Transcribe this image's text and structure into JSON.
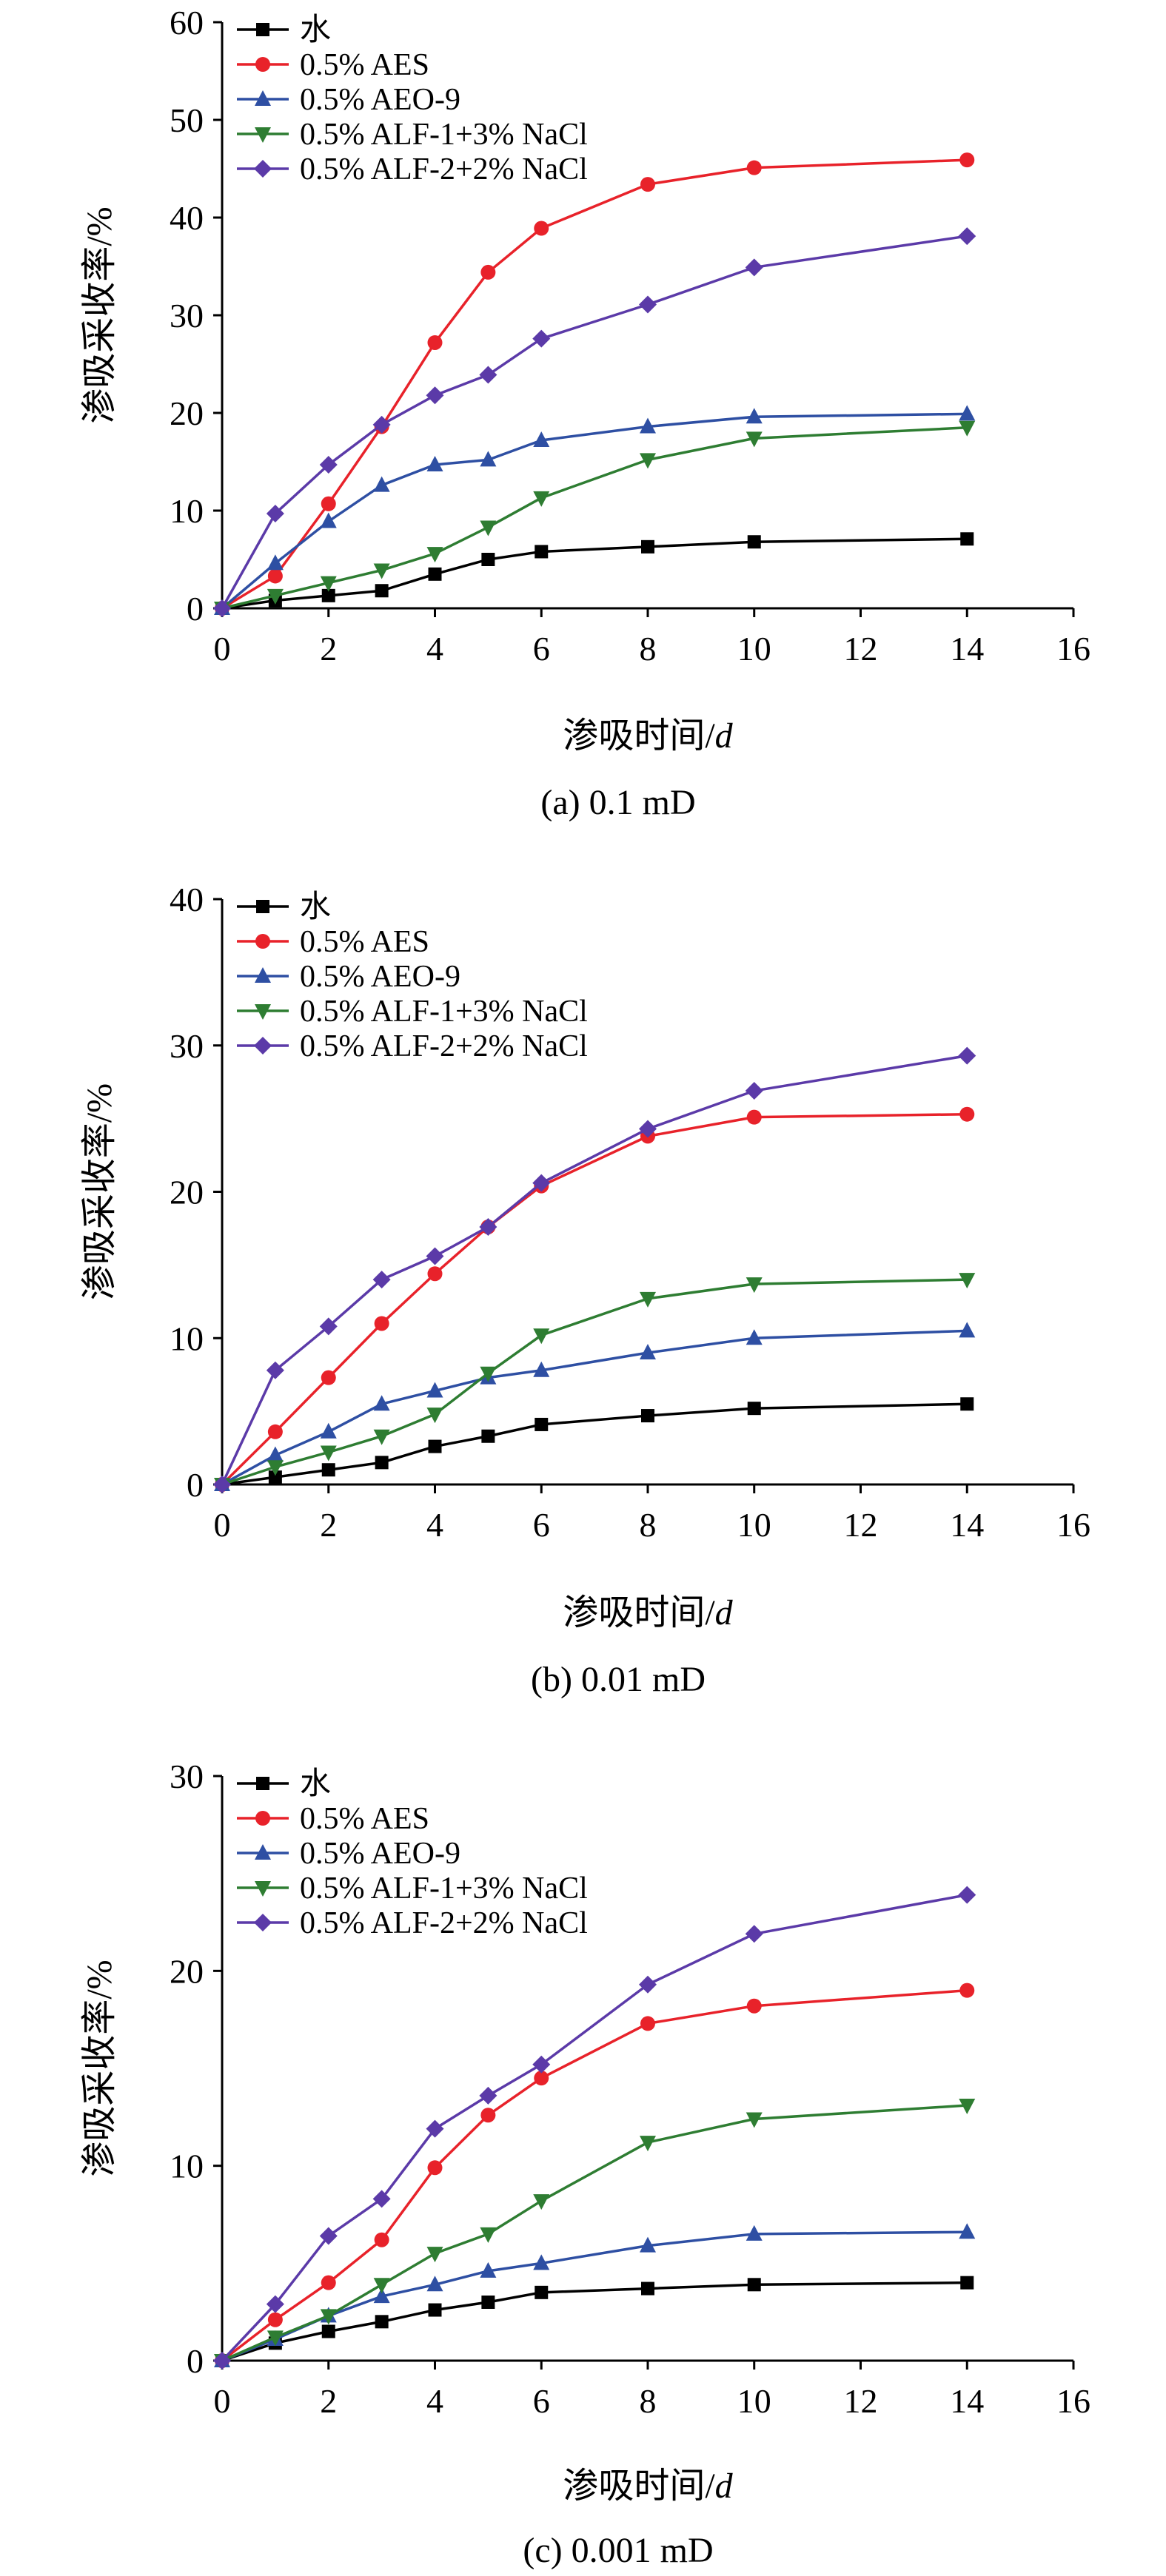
{
  "chart_data": [
    {
      "type": "line",
      "caption": "(a) 0.1 mD",
      "xlabel": "渗吸时间/d",
      "ylabel": "渗吸采收率/%",
      "xlim": [
        0,
        16
      ],
      "ylim": [
        0,
        60
      ],
      "xticks": [
        0,
        2,
        4,
        6,
        8,
        10,
        12,
        14,
        16
      ],
      "yticks": [
        0,
        10,
        20,
        30,
        40,
        50,
        60
      ],
      "grid": false,
      "legend_position": "top-left",
      "series": [
        {
          "name": "水",
          "color": "#000000",
          "marker": "square",
          "x": [
            0,
            1,
            2,
            3,
            4,
            5,
            6,
            8,
            10,
            14
          ],
          "y": [
            0,
            0.8,
            1.3,
            1.8,
            3.5,
            5.0,
            5.8,
            6.3,
            6.8,
            7.1
          ]
        },
        {
          "name": "0.5% AES",
          "color": "#e8222a",
          "marker": "circle",
          "x": [
            0,
            1,
            2,
            3,
            4,
            5,
            6,
            8,
            10,
            14
          ],
          "y": [
            0,
            3.3,
            10.7,
            18.6,
            27.2,
            34.4,
            38.9,
            43.4,
            45.1,
            45.9
          ]
        },
        {
          "name": "0.5% AEO-9",
          "color": "#2e4fa3",
          "marker": "triangle-up",
          "x": [
            0,
            1,
            2,
            3,
            4,
            5,
            6,
            8,
            10,
            14
          ],
          "y": [
            0,
            4.6,
            8.9,
            12.6,
            14.7,
            15.2,
            17.2,
            18.6,
            19.6,
            19.9
          ]
        },
        {
          "name": "0.5% ALF-1+3% NaCl",
          "color": "#2e7d32",
          "marker": "triangle-down",
          "x": [
            0,
            1,
            2,
            3,
            4,
            5,
            6,
            8,
            10,
            14
          ],
          "y": [
            0,
            1.3,
            2.6,
            3.9,
            5.6,
            8.3,
            11.3,
            15.2,
            17.4,
            18.5
          ]
        },
        {
          "name": "0.5% ALF-2+2% NaCl",
          "color": "#5b3aa8",
          "marker": "diamond",
          "x": [
            0,
            1,
            2,
            3,
            4,
            5,
            6,
            8,
            10,
            14
          ],
          "y": [
            0,
            9.7,
            14.7,
            18.8,
            21.8,
            23.9,
            27.6,
            31.1,
            34.9,
            38.1
          ]
        }
      ]
    },
    {
      "type": "line",
      "caption": "(b)  0.01 mD",
      "xlabel": "渗吸时间/d",
      "ylabel": "渗吸采收率/%",
      "xlim": [
        0,
        16
      ],
      "ylim": [
        0,
        40
      ],
      "xticks": [
        0,
        2,
        4,
        6,
        8,
        10,
        12,
        14,
        16
      ],
      "yticks": [
        0,
        10,
        20,
        30,
        40
      ],
      "grid": false,
      "legend_position": "top-left",
      "series": [
        {
          "name": "水",
          "color": "#000000",
          "marker": "square",
          "x": [
            0,
            1,
            2,
            3,
            4,
            5,
            6,
            8,
            10,
            14
          ],
          "y": [
            0,
            0.5,
            1.0,
            1.5,
            2.6,
            3.3,
            4.1,
            4.7,
            5.2,
            5.5
          ]
        },
        {
          "name": "0.5% AES",
          "color": "#e8222a",
          "marker": "circle",
          "x": [
            0,
            1,
            2,
            3,
            4,
            5,
            6,
            8,
            10,
            14
          ],
          "y": [
            0,
            3.6,
            7.3,
            11.0,
            14.4,
            17.6,
            20.4,
            23.8,
            25.1,
            25.3
          ]
        },
        {
          "name": "0.5% AEO-9",
          "color": "#2e4fa3",
          "marker": "triangle-up",
          "x": [
            0,
            1,
            2,
            3,
            4,
            5,
            6,
            8,
            10,
            14
          ],
          "y": [
            0,
            2.0,
            3.6,
            5.5,
            6.4,
            7.3,
            7.8,
            9.0,
            10.0,
            10.5
          ]
        },
        {
          "name": "0.5% ALF-1+3% NaCl",
          "color": "#2e7d32",
          "marker": "triangle-down",
          "x": [
            0,
            1,
            2,
            3,
            4,
            5,
            6,
            8,
            10,
            14
          ],
          "y": [
            0,
            1.2,
            2.2,
            3.3,
            4.8,
            7.6,
            10.2,
            12.7,
            13.7,
            14.0
          ]
        },
        {
          "name": "0.5% ALF-2+2% NaCl",
          "color": "#5b3aa8",
          "marker": "diamond",
          "x": [
            0,
            1,
            2,
            3,
            4,
            5,
            6,
            8,
            10,
            14
          ],
          "y": [
            0,
            7.8,
            10.8,
            14.0,
            15.6,
            17.6,
            20.6,
            24.3,
            26.9,
            29.3
          ]
        }
      ]
    },
    {
      "type": "line",
      "caption": "(c) 0.001 mD",
      "xlabel": "渗吸时间/d",
      "ylabel": "渗吸采收率/%",
      "xlim": [
        0,
        16
      ],
      "ylim": [
        0,
        30
      ],
      "xticks": [
        0,
        2,
        4,
        6,
        8,
        10,
        12,
        14,
        16
      ],
      "yticks": [
        0,
        10,
        20,
        30
      ],
      "grid": false,
      "legend_position": "top-left",
      "series": [
        {
          "name": "水",
          "color": "#000000",
          "marker": "square",
          "x": [
            0,
            1,
            2,
            3,
            4,
            5,
            6,
            8,
            10,
            14
          ],
          "y": [
            0,
            0.9,
            1.5,
            2.0,
            2.6,
            3.0,
            3.5,
            3.7,
            3.9,
            4.0
          ]
        },
        {
          "name": "0.5% AES",
          "color": "#e8222a",
          "marker": "circle",
          "x": [
            0,
            1,
            2,
            3,
            4,
            5,
            6,
            8,
            10,
            14
          ],
          "y": [
            0,
            2.1,
            4.0,
            6.2,
            9.9,
            12.6,
            14.5,
            17.3,
            18.2,
            19.0
          ]
        },
        {
          "name": "0.5% AEO-9",
          "color": "#2e4fa3",
          "marker": "triangle-up",
          "x": [
            0,
            1,
            2,
            3,
            4,
            5,
            6,
            8,
            10,
            14
          ],
          "y": [
            0,
            1.1,
            2.3,
            3.3,
            3.9,
            4.6,
            5.0,
            5.9,
            6.5,
            6.6
          ]
        },
        {
          "name": "0.5% ALF-1+3% NaCl",
          "color": "#2e7d32",
          "marker": "triangle-down",
          "x": [
            0,
            1,
            2,
            3,
            4,
            5,
            6,
            8,
            10,
            14
          ],
          "y": [
            0,
            1.2,
            2.3,
            3.9,
            5.5,
            6.5,
            8.2,
            11.2,
            12.4,
            13.1
          ]
        },
        {
          "name": "0.5% ALF-2+2% NaCl",
          "color": "#5b3aa8",
          "marker": "diamond",
          "x": [
            0,
            1,
            2,
            3,
            4,
            5,
            6,
            8,
            10,
            14
          ],
          "y": [
            0,
            2.9,
            6.4,
            8.3,
            11.9,
            13.6,
            15.2,
            19.3,
            21.9,
            23.9
          ]
        }
      ]
    }
  ]
}
